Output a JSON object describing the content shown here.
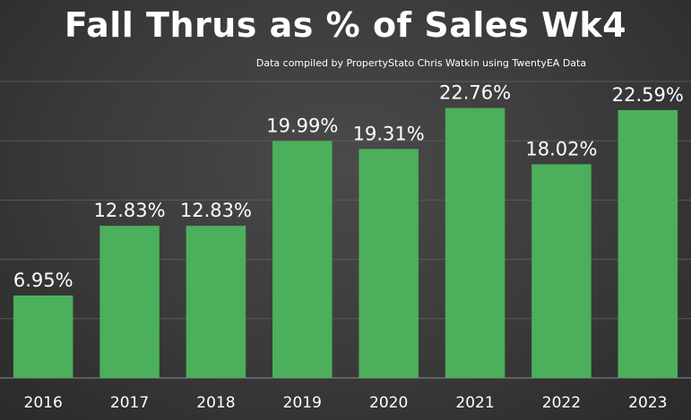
{
  "chart_data": {
    "type": "bar",
    "title": "Fall Thrus as % of Sales Wk4",
    "subtitle": "Data compiled by PropertyStato Chris Watkin using TwentyEA Data",
    "categories": [
      "2016",
      "2017",
      "2018",
      "2019",
      "2020",
      "2021",
      "2022",
      "2023"
    ],
    "values": [
      6.95,
      12.83,
      12.83,
      19.99,
      19.31,
      22.76,
      18.02,
      22.59
    ],
    "data_labels": [
      "6.95%",
      "12.83%",
      "12.83%",
      "19.99%",
      "19.31%",
      "22.76%",
      "18.02%",
      "22.59%"
    ],
    "ylim": [
      0,
      25
    ],
    "grid": true,
    "legend": "none",
    "colors": {
      "bar": "#4CAF5B",
      "text": "#FFFFFF",
      "grid": "#5A5A5A",
      "axis": "#8A8A8A"
    }
  }
}
